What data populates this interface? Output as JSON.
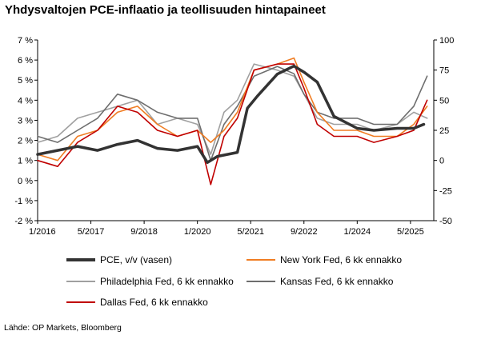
{
  "chart_data": {
    "type": "line",
    "title": "Yhdysvaltojen PCE-inflaatio ja teollisuuden hintapaineet",
    "source": "Lähde: OP Markets, Bloomberg",
    "x_ticks": [
      "1/2016",
      "5/2017",
      "9/2018",
      "1/2020",
      "5/2021",
      "9/2022",
      "1/2024",
      "5/2025"
    ],
    "x_range": [
      "2016-01",
      "2025-12"
    ],
    "y_left": {
      "ylim": [
        -2,
        7
      ],
      "ticks": [
        "-2 %",
        "-1 %",
        "0 %",
        "1 %",
        "2 %",
        "3 %",
        "4 %",
        "5 %",
        "6 %",
        "7 %"
      ]
    },
    "y_right": {
      "ylim": [
        -50,
        100
      ],
      "ticks": [
        "-50",
        "-25",
        "0",
        "25",
        "50",
        "75",
        "100"
      ]
    },
    "grid": false,
    "legend_position": "bottom",
    "series": [
      {
        "name": "PCE, v/v (vasen)",
        "axis": "left",
        "color": "#333333",
        "x": [
          "2016-01",
          "2016-07",
          "2017-01",
          "2017-07",
          "2018-01",
          "2018-07",
          "2019-01",
          "2019-07",
          "2020-01",
          "2020-04",
          "2020-07",
          "2021-01",
          "2021-04",
          "2021-07",
          "2022-01",
          "2022-06",
          "2022-09",
          "2023-01",
          "2023-06",
          "2024-01",
          "2024-06",
          "2025-01",
          "2025-06",
          "2025-09"
        ],
        "values": [
          1.3,
          1.5,
          1.7,
          1.5,
          1.8,
          2.0,
          1.6,
          1.5,
          1.7,
          0.9,
          1.2,
          1.4,
          3.6,
          4.2,
          5.3,
          5.7,
          5.4,
          4.9,
          3.2,
          2.6,
          2.5,
          2.6,
          2.6,
          2.8
        ]
      },
      {
        "name": "New York Fed, 6 kk ennakko",
        "axis": "right",
        "color": "#f07d23",
        "x": [
          "2016-01",
          "2016-07",
          "2017-01",
          "2017-07",
          "2018-01",
          "2018-07",
          "2019-01",
          "2019-07",
          "2020-01",
          "2020-05",
          "2020-09",
          "2021-01",
          "2021-06",
          "2022-01",
          "2022-06",
          "2022-09",
          "2023-01",
          "2023-06",
          "2024-01",
          "2024-06",
          "2025-01",
          "2025-06",
          "2025-10"
        ],
        "values": [
          5,
          0,
          20,
          25,
          40,
          45,
          30,
          20,
          25,
          15,
          25,
          40,
          75,
          80,
          85,
          65,
          40,
          25,
          25,
          20,
          20,
          30,
          45
        ]
      },
      {
        "name": "Philadelphia Fed, 6 kk ennakko",
        "axis": "right",
        "color": "#a0a0a0",
        "x": [
          "2016-01",
          "2016-07",
          "2017-01",
          "2017-07",
          "2018-01",
          "2018-07",
          "2019-01",
          "2019-07",
          "2020-01",
          "2020-05",
          "2020-09",
          "2021-01",
          "2021-06",
          "2022-01",
          "2022-06",
          "2022-09",
          "2023-01",
          "2023-06",
          "2024-01",
          "2024-06",
          "2025-01",
          "2025-06",
          "2025-10"
        ],
        "values": [
          15,
          20,
          35,
          40,
          45,
          50,
          30,
          35,
          30,
          5,
          40,
          50,
          80,
          75,
          70,
          55,
          35,
          30,
          30,
          25,
          30,
          40,
          35
        ]
      },
      {
        "name": "Kansas Fed, 6 kk ennakko",
        "axis": "right",
        "color": "#6e6e6e",
        "x": [
          "2016-01",
          "2016-07",
          "2017-01",
          "2017-07",
          "2018-01",
          "2018-07",
          "2019-01",
          "2019-07",
          "2020-01",
          "2020-05",
          "2020-09",
          "2021-01",
          "2021-06",
          "2022-01",
          "2022-06",
          "2022-09",
          "2023-01",
          "2023-06",
          "2024-01",
          "2024-06",
          "2025-01",
          "2025-06",
          "2025-10"
        ],
        "values": [
          20,
          15,
          25,
          35,
          55,
          50,
          40,
          35,
          35,
          0,
          30,
          45,
          70,
          78,
          72,
          55,
          40,
          35,
          35,
          30,
          30,
          45,
          70
        ]
      },
      {
        "name": "Dallas Fed, 6 kk ennakko",
        "axis": "right",
        "color": "#c00000",
        "x": [
          "2016-01",
          "2016-07",
          "2017-01",
          "2017-07",
          "2018-01",
          "2018-07",
          "2019-01",
          "2019-07",
          "2020-01",
          "2020-05",
          "2020-09",
          "2021-01",
          "2021-06",
          "2022-01",
          "2022-06",
          "2022-09",
          "2023-01",
          "2023-06",
          "2024-01",
          "2024-06",
          "2025-01",
          "2025-06",
          "2025-10"
        ],
        "values": [
          0,
          -5,
          15,
          25,
          45,
          40,
          25,
          20,
          25,
          -20,
          20,
          35,
          75,
          80,
          80,
          60,
          30,
          20,
          20,
          15,
          20,
          25,
          50
        ]
      }
    ]
  }
}
